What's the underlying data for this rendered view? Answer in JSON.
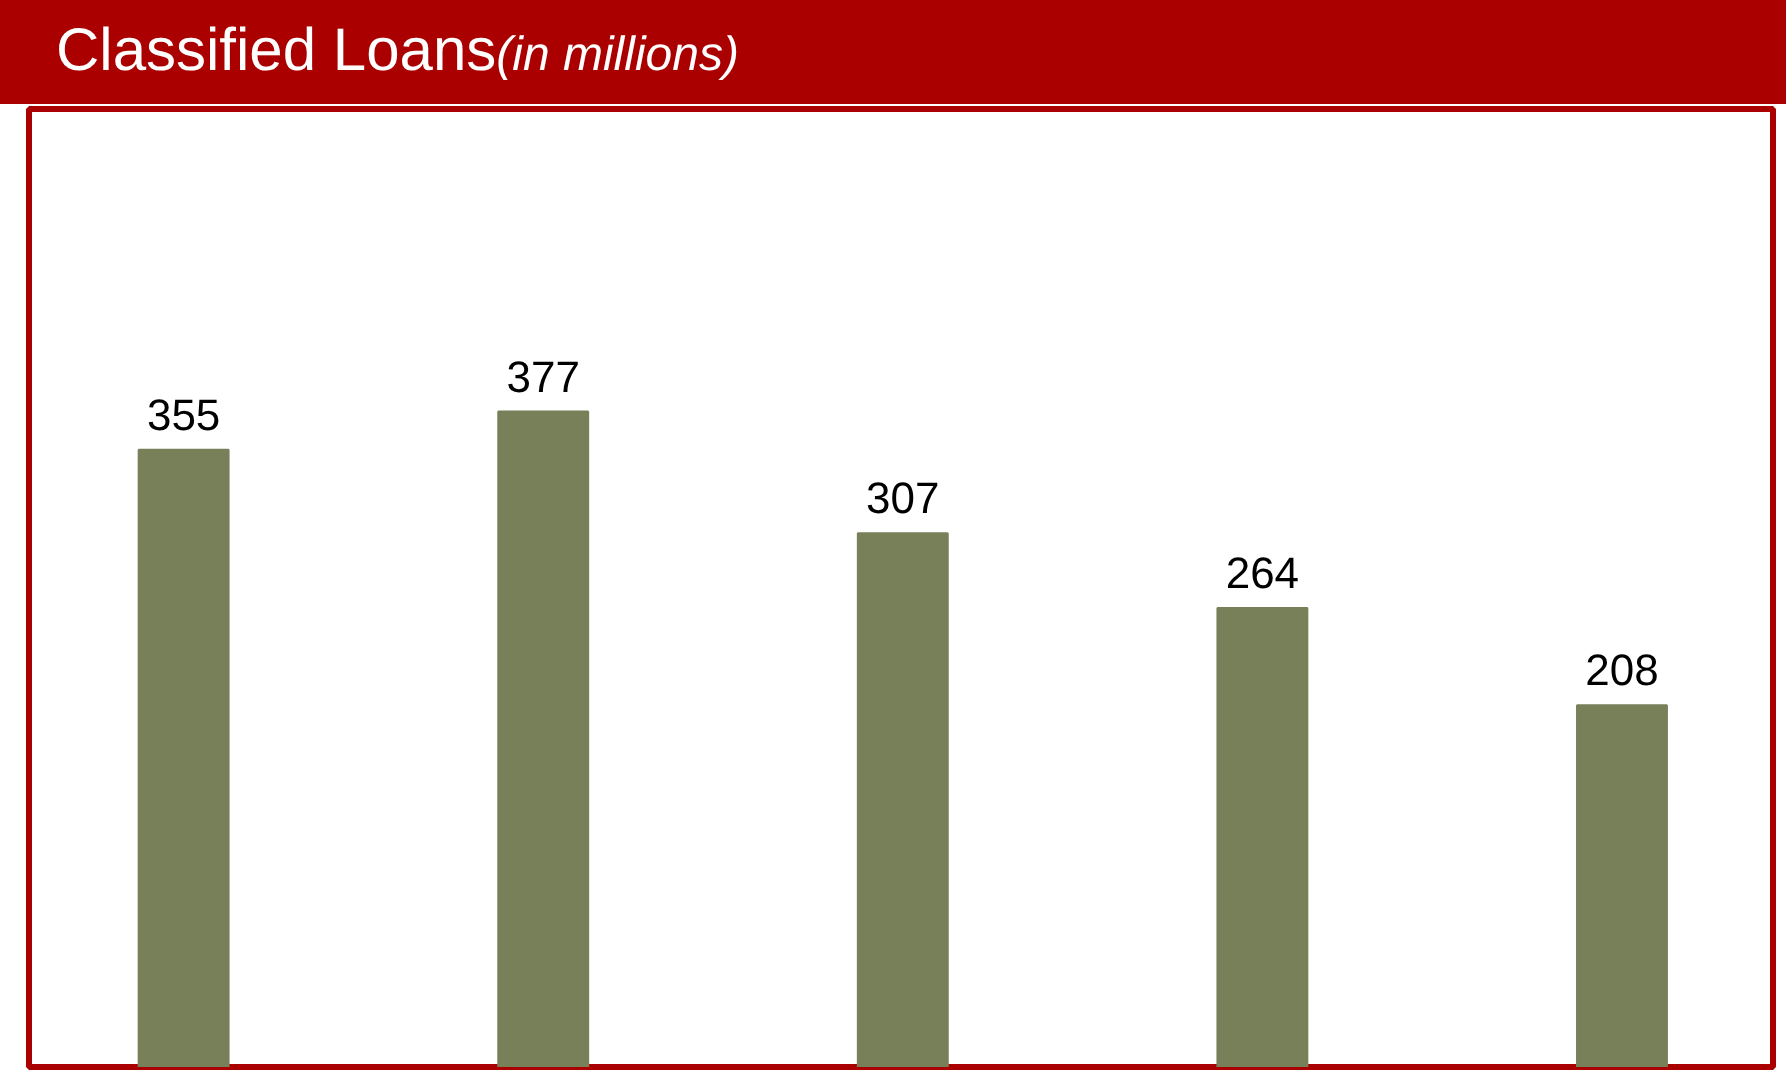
{
  "chart_data": {
    "type": "bar",
    "title": "Classified Loans",
    "subtitle": "(in millions)",
    "categories": [
      null,
      null,
      null,
      null,
      null
    ],
    "values": [
      355,
      377,
      307,
      264,
      208
    ],
    "color": "#778059",
    "ylim": [
      0,
      551
    ],
    "data_labels": true,
    "tick_labels": false
  }
}
